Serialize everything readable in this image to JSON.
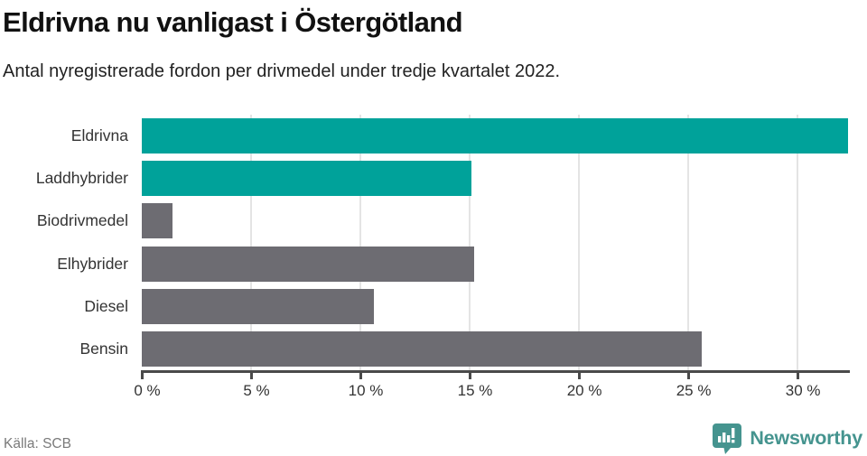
{
  "header": {
    "title": "Eldrivna nu vanligast i Östergötland",
    "subtitle": "Antal nyregistrerade fordon per drivmedel under tredje kvartalet 2022."
  },
  "chart_data": {
    "type": "bar",
    "orientation": "horizontal",
    "title": "Eldrivna nu vanligast i Östergötland",
    "subtitle": "Antal nyregistrerade fordon per drivmedel under tredje kvartalet 2022.",
    "categories": [
      "Eldrivna",
      "Laddhybrider",
      "Biodrivmedel",
      "Elhybrider",
      "Diesel",
      "Bensin"
    ],
    "values": [
      32.3,
      15.1,
      1.4,
      15.2,
      10.6,
      25.6
    ],
    "unit": "%",
    "highlighted_categories": [
      "Eldrivna",
      "Laddhybrider"
    ],
    "highlight_color": "#00a29a",
    "default_color": "#6d6c72",
    "x_ticks": [
      0,
      5,
      10,
      15,
      20,
      25,
      30
    ],
    "x_tick_labels": [
      "0 %",
      "5 %",
      "10 %",
      "15 %",
      "20 %",
      "25 %",
      "30 %"
    ],
    "xlim": [
      0,
      32.35
    ],
    "grid": "vertical-only",
    "gridline_color": "#e4e4e4",
    "axis_color": "#4a4a4a",
    "legend": "none"
  },
  "footer": {
    "source": "Källa: SCB",
    "brand": "Newsworthy",
    "brand_color": "#45948f"
  }
}
